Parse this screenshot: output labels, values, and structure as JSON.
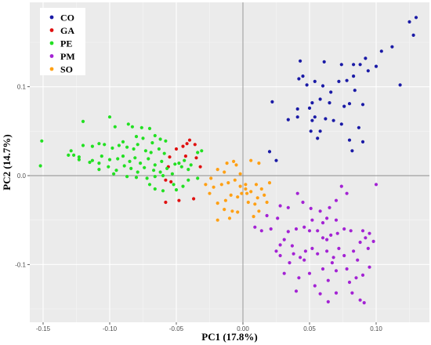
{
  "chart_data": {
    "type": "scatter",
    "xlabel": "PC1 (17.8%)",
    "ylabel": "PC2 (14.7%)",
    "xlim": [
      -0.16,
      0.14
    ],
    "ylim": [
      -0.165,
      0.195
    ],
    "x_ticks": [
      -0.15,
      -0.1,
      -0.05,
      0.0,
      0.05,
      0.1
    ],
    "x_tick_labels": [
      "-0.15",
      "-0.10",
      "-0.05",
      "0.00",
      "0.05",
      "0.10"
    ],
    "y_ticks": [
      -0.1,
      0.0,
      0.1
    ],
    "y_tick_labels": [
      "-0.1",
      "0.0",
      "0.1"
    ],
    "grid": true,
    "zero_lines": true,
    "legend_position": "top-left",
    "series": [
      {
        "name": "CO",
        "color": "#1a1aa6",
        "points": [
          [
            0.13,
            0.178
          ],
          [
            0.125,
            0.173
          ],
          [
            0.128,
            0.158
          ],
          [
            0.112,
            0.145
          ],
          [
            0.104,
            0.14
          ],
          [
            0.092,
            0.132
          ],
          [
            0.088,
            0.125
          ],
          [
            0.083,
            0.112
          ],
          [
            0.094,
            0.118
          ],
          [
            0.1,
            0.123
          ],
          [
            0.078,
            0.107
          ],
          [
            0.072,
            0.106
          ],
          [
            0.084,
            0.096
          ],
          [
            0.066,
            0.094
          ],
          [
            0.06,
            0.101
          ],
          [
            0.054,
            0.106
          ],
          [
            0.061,
            0.128
          ],
          [
            0.074,
            0.125
          ],
          [
            0.083,
            0.125
          ],
          [
            0.043,
            0.129
          ],
          [
            0.045,
            0.112
          ],
          [
            0.042,
            0.109
          ],
          [
            0.048,
            0.102
          ],
          [
            0.08,
            0.081
          ],
          [
            0.076,
            0.078
          ],
          [
            0.09,
            0.08
          ],
          [
            0.118,
            0.102
          ],
          [
            0.058,
            0.086
          ],
          [
            0.052,
            0.082
          ],
          [
            0.065,
            0.082
          ],
          [
            0.05,
            0.076
          ],
          [
            0.054,
            0.066
          ],
          [
            0.041,
            0.075
          ],
          [
            0.041,
            0.066
          ],
          [
            0.034,
            0.063
          ],
          [
            0.022,
            0.083
          ],
          [
            0.058,
            0.05
          ],
          [
            0.051,
            0.05
          ],
          [
            0.062,
            0.064
          ],
          [
            0.068,
            0.062
          ],
          [
            0.074,
            0.058
          ],
          [
            0.087,
            0.054
          ],
          [
            0.056,
            0.042
          ],
          [
            0.09,
            0.038
          ],
          [
            0.082,
            0.028
          ],
          [
            0.08,
            0.04
          ],
          [
            0.052,
            0.062
          ],
          [
            0.02,
            0.027
          ],
          [
            0.025,
            0.017
          ]
        ]
      },
      {
        "name": "GA",
        "color": "#e01010",
        "points": [
          [
            -0.04,
            0.04
          ],
          [
            -0.042,
            0.036
          ],
          [
            -0.045,
            0.033
          ],
          [
            -0.036,
            0.035
          ],
          [
            -0.05,
            0.03
          ],
          [
            -0.055,
            0.021
          ],
          [
            -0.043,
            0.022
          ],
          [
            -0.035,
            0.02
          ],
          [
            -0.032,
            0.01
          ],
          [
            -0.056,
            0.01
          ],
          [
            -0.058,
            -0.005
          ],
          [
            -0.054,
            -0.007
          ],
          [
            -0.058,
            -0.03
          ],
          [
            -0.048,
            -0.028
          ],
          [
            -0.037,
            -0.026
          ]
        ]
      },
      {
        "name": "PE",
        "color": "#22e022",
        "points": [
          [
            -0.151,
            0.039
          ],
          [
            -0.152,
            0.011
          ],
          [
            -0.12,
            0.061
          ],
          [
            -0.127,
            0.023
          ],
          [
            -0.123,
            0.018
          ],
          [
            -0.113,
            0.017
          ],
          [
            -0.108,
            0.014
          ],
          [
            -0.1,
            0.066
          ],
          [
            -0.096,
            0.055
          ],
          [
            -0.086,
            0.058
          ],
          [
            -0.083,
            0.055
          ],
          [
            -0.076,
            0.054
          ],
          [
            -0.07,
            0.053
          ],
          [
            -0.104,
            0.035
          ],
          [
            -0.09,
            0.038
          ],
          [
            -0.08,
            0.044
          ],
          [
            -0.075,
            0.042
          ],
          [
            -0.068,
            0.037
          ],
          [
            -0.066,
            0.045
          ],
          [
            -0.062,
            0.041
          ],
          [
            -0.058,
            0.039
          ],
          [
            -0.12,
            0.034
          ],
          [
            -0.113,
            0.033
          ],
          [
            -0.108,
            0.036
          ],
          [
            -0.098,
            0.031
          ],
          [
            -0.093,
            0.034
          ],
          [
            -0.087,
            0.032
          ],
          [
            -0.082,
            0.03
          ],
          [
            -0.079,
            0.035
          ],
          [
            -0.073,
            0.028
          ],
          [
            -0.069,
            0.026
          ],
          [
            -0.063,
            0.03
          ],
          [
            -0.059,
            0.025
          ],
          [
            -0.123,
            0.021
          ],
          [
            -0.115,
            0.015
          ],
          [
            -0.106,
            0.022
          ],
          [
            -0.1,
            0.018
          ],
          [
            -0.094,
            0.019
          ],
          [
            -0.09,
            0.022
          ],
          [
            -0.085,
            0.016
          ],
          [
            -0.081,
            0.02
          ],
          [
            -0.077,
            0.014
          ],
          [
            -0.071,
            0.019
          ],
          [
            -0.066,
            0.012
          ],
          [
            -0.061,
            0.016
          ],
          [
            -0.108,
            0.007
          ],
          [
            -0.101,
            0.01
          ],
          [
            -0.095,
            0.006
          ],
          [
            -0.089,
            0.011
          ],
          [
            -0.084,
            0.008
          ],
          [
            -0.079,
            0.004
          ],
          [
            -0.074,
            0.009
          ],
          [
            -0.067,
            0.006
          ],
          [
            -0.062,
            0.004
          ],
          [
            -0.057,
            0.008
          ],
          [
            -0.051,
            0.013
          ],
          [
            -0.046,
            0.01
          ],
          [
            -0.041,
            0.007
          ],
          [
            -0.048,
            0.014
          ],
          [
            -0.044,
            0.017
          ],
          [
            -0.039,
            0.012
          ],
          [
            -0.087,
            -0.001
          ],
          [
            -0.08,
            -0.002
          ],
          [
            -0.072,
            -0.003
          ],
          [
            -0.066,
            -0.001
          ],
          [
            -0.06,
            0.0
          ],
          [
            -0.053,
            0.002
          ],
          [
            -0.07,
            -0.01
          ],
          [
            -0.066,
            -0.015
          ],
          [
            -0.06,
            -0.017
          ],
          [
            -0.05,
            -0.016
          ],
          [
            -0.045,
            -0.012
          ],
          [
            -0.041,
            -0.005
          ],
          [
            -0.034,
            -0.003
          ],
          [
            -0.031,
            0.028
          ],
          [
            -0.034,
            0.026
          ],
          [
            -0.052,
            -0.01
          ],
          [
            -0.097,
            0.002
          ],
          [
            -0.131,
            0.023
          ],
          [
            -0.129,
            0.028
          ]
        ]
      },
      {
        "name": "PM",
        "color": "#a322d4",
        "points": [
          [
            0.1,
            -0.01
          ],
          [
            0.078,
            -0.02
          ],
          [
            0.074,
            -0.012
          ],
          [
            0.041,
            -0.02
          ],
          [
            0.045,
            -0.03
          ],
          [
            0.051,
            -0.037
          ],
          [
            0.058,
            -0.04
          ],
          [
            0.065,
            -0.036
          ],
          [
            0.07,
            -0.028
          ],
          [
            0.028,
            -0.034
          ],
          [
            0.034,
            -0.036
          ],
          [
            0.026,
            -0.048
          ],
          [
            0.021,
            -0.06
          ],
          [
            0.014,
            -0.062
          ],
          [
            0.009,
            -0.058
          ],
          [
            0.018,
            -0.045
          ],
          [
            0.052,
            -0.05
          ],
          [
            0.06,
            -0.053
          ],
          [
            0.063,
            -0.048
          ],
          [
            0.07,
            -0.05
          ],
          [
            0.076,
            -0.06
          ],
          [
            0.066,
            -0.067
          ],
          [
            0.06,
            -0.07
          ],
          [
            0.056,
            -0.062
          ],
          [
            0.05,
            -0.062
          ],
          [
            0.046,
            -0.058
          ],
          [
            0.04,
            -0.06
          ],
          [
            0.034,
            -0.063
          ],
          [
            0.031,
            -0.072
          ],
          [
            0.028,
            -0.078
          ],
          [
            0.025,
            -0.085
          ],
          [
            0.028,
            -0.09
          ],
          [
            0.038,
            -0.088
          ],
          [
            0.043,
            -0.092
          ],
          [
            0.047,
            -0.085
          ],
          [
            0.052,
            -0.082
          ],
          [
            0.056,
            -0.088
          ],
          [
            0.063,
            -0.085
          ],
          [
            0.068,
            -0.092
          ],
          [
            0.072,
            -0.082
          ],
          [
            0.076,
            -0.09
          ],
          [
            0.083,
            -0.085
          ],
          [
            0.088,
            -0.075
          ],
          [
            0.092,
            -0.07
          ],
          [
            0.094,
            -0.082
          ],
          [
            0.098,
            -0.074
          ],
          [
            0.071,
            -0.065
          ],
          [
            0.081,
            -0.062
          ],
          [
            0.09,
            -0.062
          ],
          [
            0.095,
            -0.065
          ],
          [
            0.086,
            -0.095
          ],
          [
            0.078,
            -0.105
          ],
          [
            0.07,
            -0.107
          ],
          [
            0.06,
            -0.105
          ],
          [
            0.05,
            -0.11
          ],
          [
            0.042,
            -0.115
          ],
          [
            0.031,
            -0.11
          ],
          [
            0.064,
            -0.118
          ],
          [
            0.054,
            -0.124
          ],
          [
            0.04,
            -0.13
          ],
          [
            0.07,
            -0.132
          ],
          [
            0.08,
            -0.12
          ],
          [
            0.088,
            -0.14
          ],
          [
            0.091,
            -0.143
          ],
          [
            0.082,
            -0.132
          ],
          [
            0.058,
            -0.133
          ],
          [
            0.064,
            -0.142
          ],
          [
            0.035,
            -0.098
          ],
          [
            0.046,
            -0.095
          ],
          [
            0.09,
            -0.112
          ],
          [
            0.095,
            -0.103
          ],
          [
            0.085,
            -0.115
          ],
          [
            0.037,
            -0.079
          ],
          [
            0.063,
            -0.072
          ],
          [
            0.067,
            -0.098
          ]
        ]
      },
      {
        "name": "SO",
        "color": "#ffa014",
        "points": [
          [
            -0.012,
            0.014
          ],
          [
            -0.007,
            0.016
          ],
          [
            -0.005,
            0.012
          ],
          [
            0.006,
            0.017
          ],
          [
            0.012,
            0.014
          ],
          [
            -0.019,
            0.007
          ],
          [
            -0.014,
            0.004
          ],
          [
            -0.024,
            -0.003
          ],
          [
            -0.028,
            -0.01
          ],
          [
            -0.022,
            -0.013
          ],
          [
            -0.016,
            -0.01
          ],
          [
            -0.011,
            -0.008
          ],
          [
            -0.006,
            -0.005
          ],
          [
            -0.002,
            -0.012
          ],
          [
            0.002,
            -0.015
          ],
          [
            0.006,
            -0.018
          ],
          [
            0.01,
            -0.01
          ],
          [
            0.014,
            -0.015
          ],
          [
            0.016,
            -0.022
          ],
          [
            0.011,
            -0.025
          ],
          [
            0.003,
            -0.02
          ],
          [
            -0.004,
            -0.024
          ],
          [
            -0.009,
            -0.022
          ],
          [
            -0.013,
            -0.028
          ],
          [
            -0.019,
            -0.031
          ],
          [
            -0.014,
            -0.038
          ],
          [
            -0.008,
            -0.04
          ],
          [
            -0.004,
            -0.041
          ],
          [
            -0.01,
            -0.048
          ],
          [
            -0.019,
            -0.05
          ],
          [
            0.004,
            -0.03
          ],
          [
            0.009,
            -0.032
          ],
          [
            0.012,
            -0.04
          ],
          [
            0.002,
            -0.01
          ],
          [
            0.018,
            -0.03
          ],
          [
            -0.001,
            -0.02
          ],
          [
            0.008,
            -0.046
          ],
          [
            -0.025,
            -0.02
          ],
          [
            0.02,
            -0.008
          ],
          [
            -0.002,
            0.002
          ]
        ]
      }
    ]
  }
}
